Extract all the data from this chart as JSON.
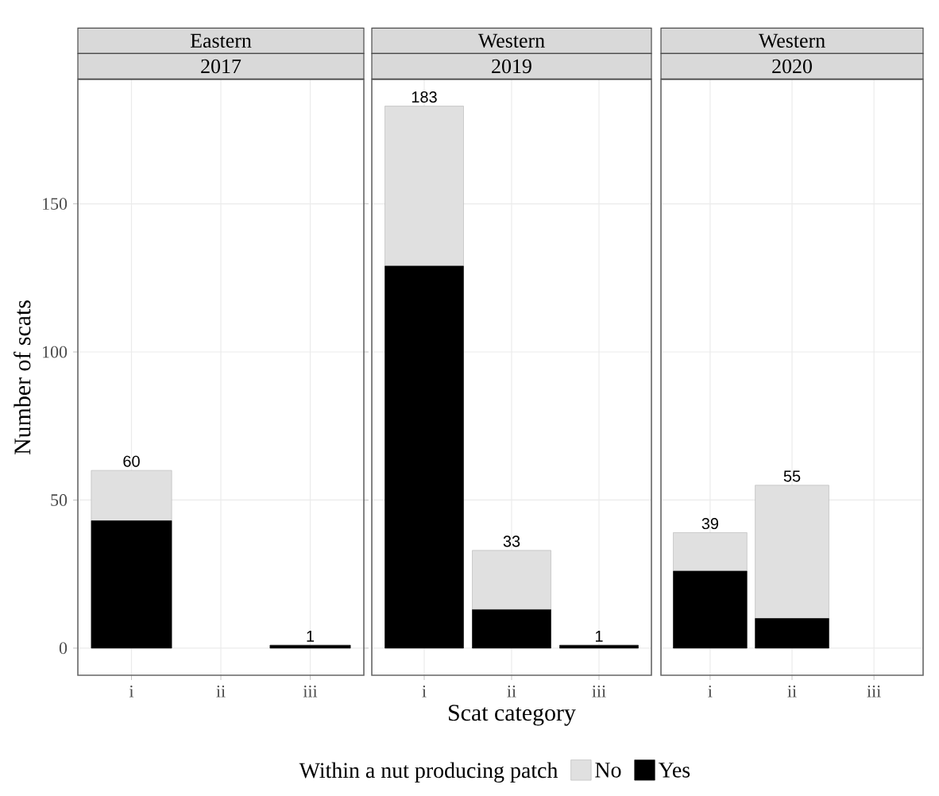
{
  "chart_data": [
    {
      "type": "bar",
      "stacked": true,
      "title": "Eastern",
      "subtitle": "2017",
      "ylabel": "Number of scats",
      "categories": [
        "i",
        "ii",
        "iii"
      ],
      "series": [
        {
          "color": "#000000",
          "values": [
            43,
            null,
            1
          ]
        },
        {
          "color": "#e0e0e0",
          "values": [
            17,
            null,
            0
          ]
        }
      ],
      "totals": [
        "60",
        null,
        "1"
      ],
      "ylim": [
        -9.15,
        192
      ],
      "yticks": [
        0,
        50,
        100,
        150
      ],
      "grid": true
    },
    {
      "type": "bar",
      "stacked": true,
      "title": "Western",
      "subtitle": "2019",
      "xlabel": "Scat category",
      "categories": [
        "i",
        "ii",
        "iii"
      ],
      "series": [
        {
          "name": "Yes",
          "color": "#000000",
          "values": [
            129,
            13,
            1
          ]
        },
        {
          "name": "No",
          "color": "#e0e0e0",
          "values": [
            54,
            20,
            0
          ]
        }
      ],
      "totals": [
        "183",
        "33",
        "1"
      ],
      "ylim": [
        -9.15,
        192
      ],
      "yticks": [
        0,
        50,
        100,
        150
      ],
      "grid": true,
      "tick_labels": "x",
      "legend": "bottom",
      "legend_title": "Within a nut producing patch"
    },
    {
      "type": "bar",
      "stacked": true,
      "title": "Western",
      "subtitle": "2020",
      "categories": [
        "i",
        "ii",
        "iii"
      ],
      "series": [
        {
          "color": "#000000",
          "values": [
            26,
            10,
            null
          ]
        },
        {
          "color": "#e0e0e0",
          "values": [
            13,
            45,
            null
          ]
        }
      ],
      "totals": [
        "39",
        "55",
        null
      ],
      "ylim": [
        -9.15,
        192
      ],
      "yticks": [
        0,
        50,
        100,
        150
      ],
      "grid": true,
      "tick_labels": "x"
    }
  ]
}
